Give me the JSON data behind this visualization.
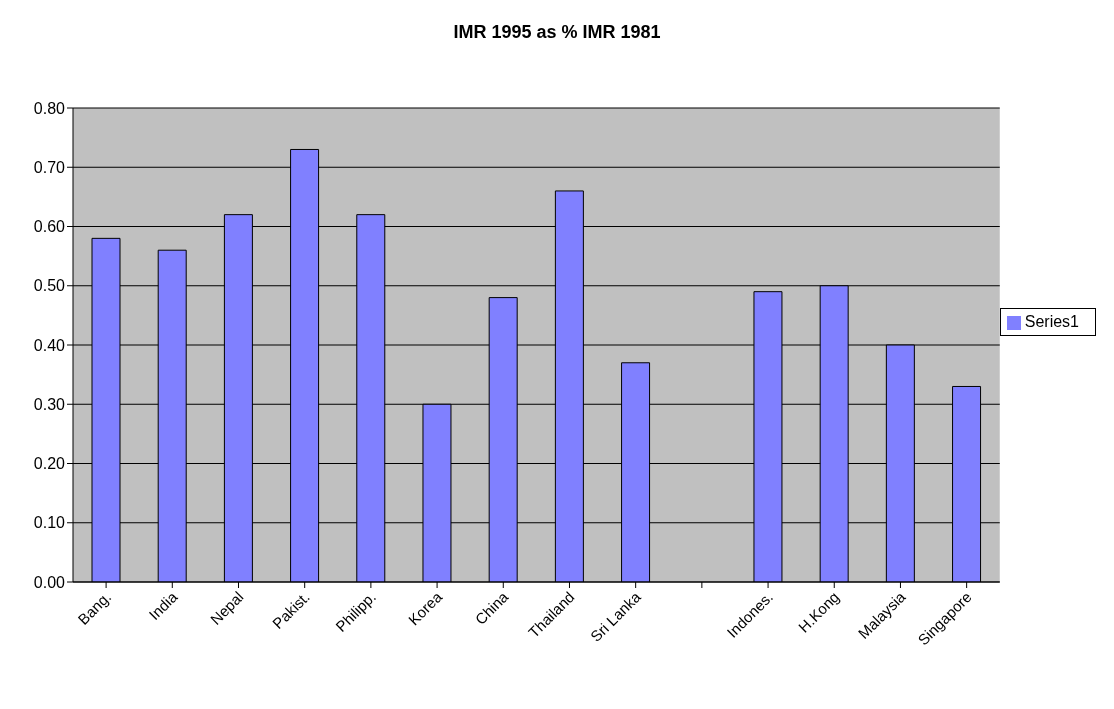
{
  "chart_data": {
    "type": "bar",
    "title": "IMR 1995 as % IMR 1981",
    "categories": [
      "Bang.",
      "India",
      "Nepal",
      "Pakist.",
      "Philipp.",
      "Korea",
      "China",
      "Thailand",
      "Sri Lanka",
      null,
      "Indones.",
      "H.Kong",
      "Malaysia",
      "Singapore"
    ],
    "series": [
      {
        "name": "Series1",
        "color": "#8080ff",
        "values": [
          0.58,
          0.56,
          0.62,
          0.73,
          0.62,
          0.3,
          0.48,
          0.66,
          0.37,
          null,
          0.49,
          0.5,
          0.4,
          0.33
        ]
      }
    ],
    "ylim": [
      0,
      0.8
    ],
    "yticks": [
      {
        "value": 0,
        "label": "0.00"
      },
      {
        "value": 0.1,
        "label": "0.10"
      },
      {
        "value": 0.2,
        "label": "0.20"
      },
      {
        "value": 0.3,
        "label": "0.30"
      },
      {
        "value": 0.4,
        "label": "0.40"
      },
      {
        "value": 0.5,
        "label": "0.50"
      },
      {
        "value": 0.6,
        "label": "0.60"
      },
      {
        "value": 0.7,
        "label": "0.70"
      },
      {
        "value": 0.8,
        "label": "0.80"
      }
    ],
    "grid": "y",
    "legend": "right"
  }
}
